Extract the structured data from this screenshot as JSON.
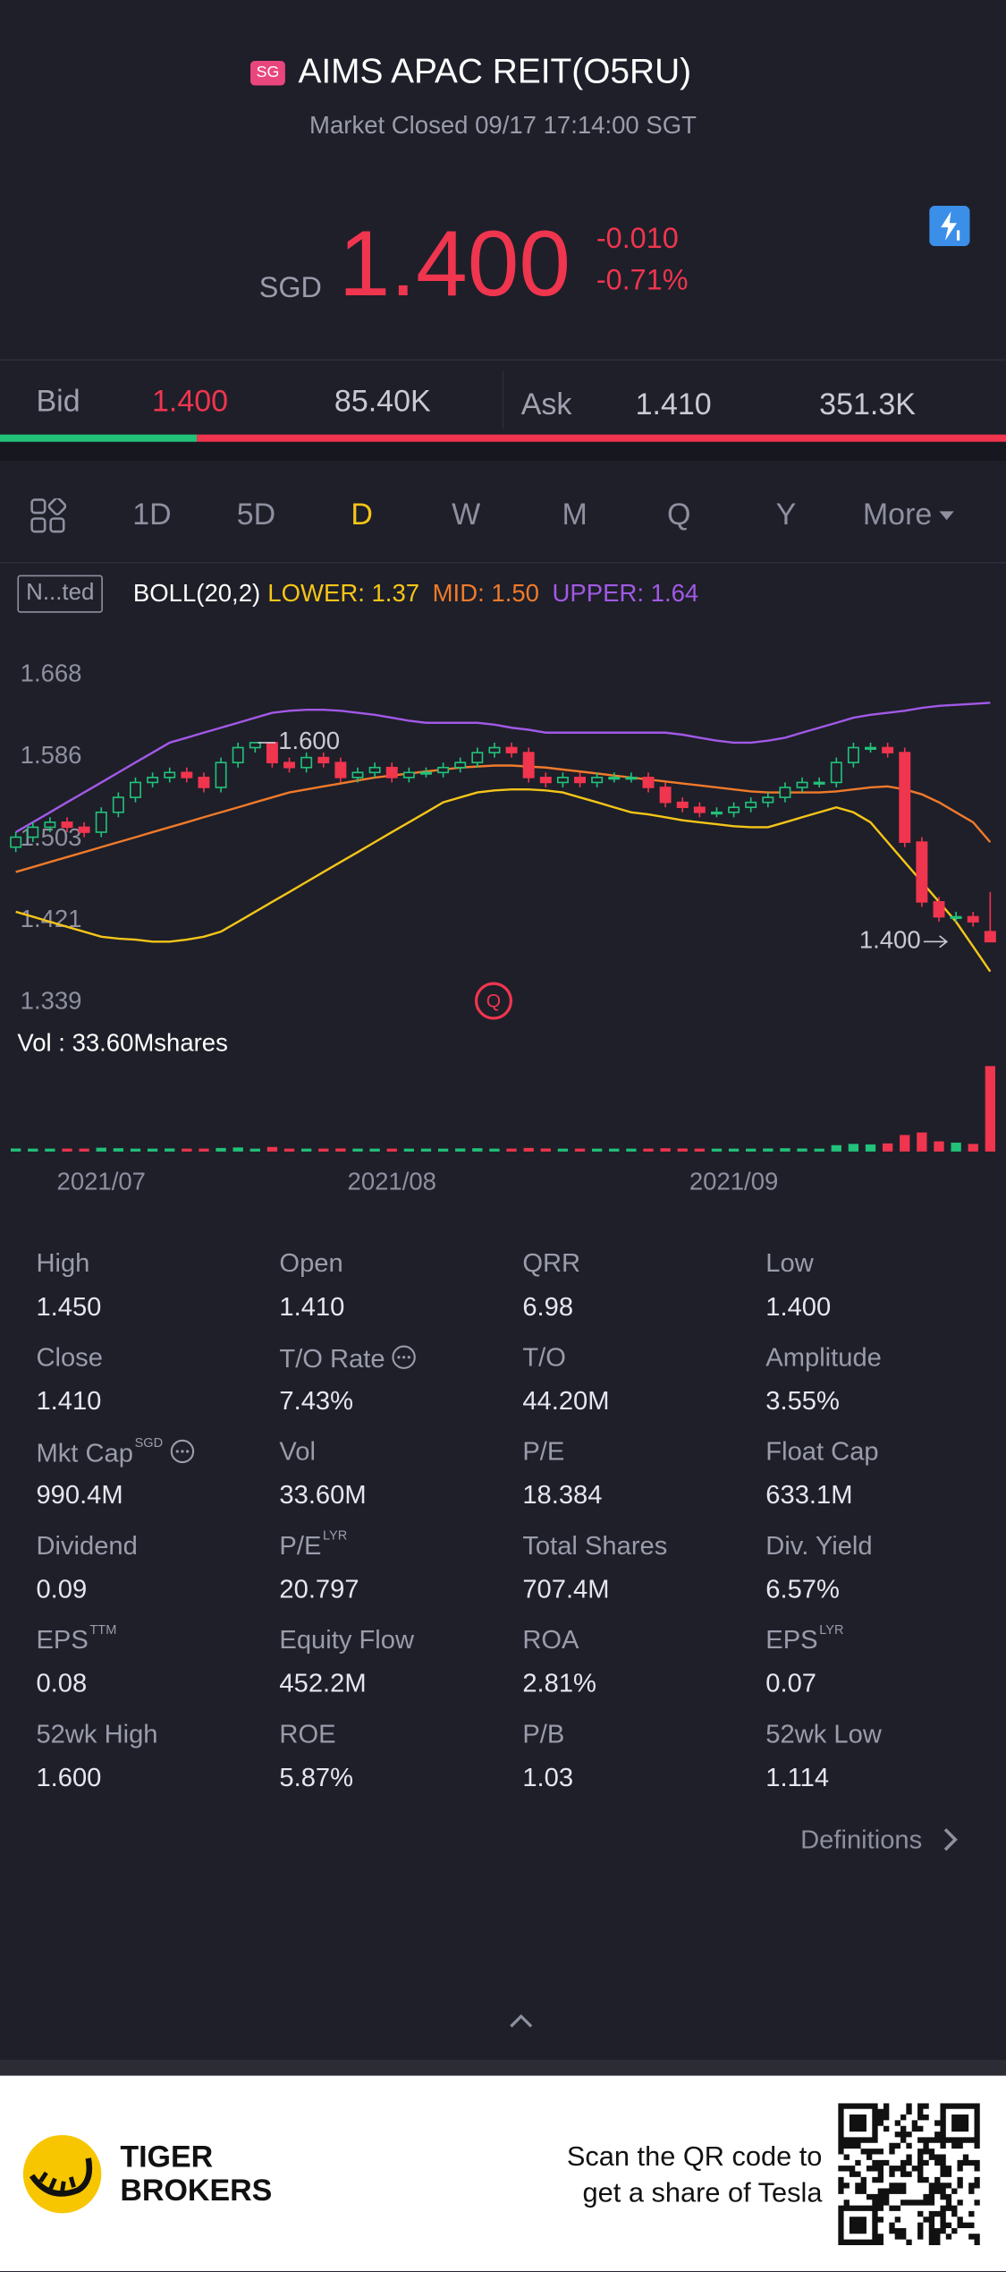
{
  "header": {
    "badge": "SG",
    "title": "AIMS APAC REIT(O5RU)",
    "status": "Market Closed 09/17 17:14:00 SGT"
  },
  "quote": {
    "currency": "SGD",
    "price": "1.400",
    "change": "-0.010",
    "change_pct": "-0.71%"
  },
  "bid_ask": {
    "bid_label": "Bid",
    "bid": "1.400",
    "bid_size": {
      "value": 85400,
      "label": "85.40K"
    },
    "ask_label": "Ask",
    "ask": "1.410",
    "ask_size": {
      "value": 351300,
      "label": "351.3K"
    },
    "bid_color": "#22c27a",
    "ask_color": "#f0354e"
  },
  "tabs": [
    "1D",
    "5D",
    "D",
    "W",
    "M",
    "Q",
    "Y",
    "More"
  ],
  "active_tab": 2,
  "indicator": {
    "tag": "N...ted",
    "label": "BOLL(20,2)"
  },
  "chart_data": {
    "type": "candlestick",
    "categories": [
      null,
      null,
      null,
      null,
      null,
      "2021/07",
      null,
      null,
      null,
      null,
      null,
      null,
      null,
      null,
      null,
      null,
      null,
      null,
      null,
      null,
      null,
      null,
      "2021/08",
      null,
      null,
      null,
      null,
      null,
      null,
      null,
      null,
      null,
      null,
      null,
      null,
      null,
      null,
      null,
      null,
      null,
      null,
      null,
      "2021/09",
      null,
      null,
      null,
      null,
      null,
      null,
      null,
      null,
      null,
      null,
      null,
      null,
      null,
      null,
      null
    ],
    "open": [
      1.495,
      1.505,
      1.515,
      1.52,
      1.515,
      1.51,
      1.53,
      1.545,
      1.56,
      1.565,
      1.57,
      1.565,
      1.555,
      1.58,
      1.595,
      1.6,
      1.58,
      1.575,
      1.585,
      1.58,
      1.565,
      1.57,
      1.575,
      1.565,
      1.57,
      1.57,
      1.575,
      1.58,
      1.59,
      1.595,
      1.59,
      1.565,
      1.56,
      1.565,
      1.56,
      1.565,
      1.565,
      1.565,
      1.555,
      1.54,
      1.535,
      1.53,
      1.53,
      1.535,
      1.54,
      1.545,
      1.555,
      1.56,
      1.56,
      1.58,
      1.595,
      1.595,
      1.59,
      1.5,
      1.44,
      1.425,
      1.425,
      1.41
    ],
    "close": [
      1.505,
      1.515,
      1.52,
      1.515,
      1.51,
      1.53,
      1.545,
      1.56,
      1.565,
      1.57,
      1.565,
      1.555,
      1.58,
      1.595,
      1.6,
      1.58,
      1.575,
      1.585,
      1.58,
      1.565,
      1.57,
      1.575,
      1.565,
      1.57,
      1.57,
      1.575,
      1.58,
      1.59,
      1.595,
      1.59,
      1.565,
      1.56,
      1.565,
      1.56,
      1.565,
      1.565,
      1.565,
      1.555,
      1.54,
      1.535,
      1.53,
      1.53,
      1.535,
      1.54,
      1.545,
      1.555,
      1.56,
      1.56,
      1.58,
      1.595,
      1.595,
      1.59,
      1.5,
      1.44,
      1.425,
      1.425,
      1.42,
      1.4
    ],
    "high": [
      1.51,
      1.52,
      1.525,
      1.525,
      1.52,
      1.535,
      1.55,
      1.565,
      1.57,
      1.575,
      1.575,
      1.57,
      1.585,
      1.6,
      1.6,
      1.6,
      1.585,
      1.59,
      1.59,
      1.585,
      1.575,
      1.58,
      1.58,
      1.575,
      1.575,
      1.58,
      1.585,
      1.595,
      1.6,
      1.6,
      1.595,
      1.57,
      1.57,
      1.57,
      1.57,
      1.57,
      1.57,
      1.57,
      1.56,
      1.545,
      1.54,
      1.535,
      1.54,
      1.545,
      1.55,
      1.56,
      1.565,
      1.565,
      1.585,
      1.6,
      1.6,
      1.6,
      1.595,
      1.505,
      1.445,
      1.43,
      1.43,
      1.45
    ],
    "low": [
      1.49,
      1.5,
      1.51,
      1.51,
      1.505,
      1.505,
      1.525,
      1.54,
      1.555,
      1.56,
      1.56,
      1.55,
      1.55,
      1.575,
      1.59,
      1.575,
      1.57,
      1.57,
      1.575,
      1.56,
      1.56,
      1.565,
      1.56,
      1.56,
      1.565,
      1.565,
      1.57,
      1.575,
      1.585,
      1.585,
      1.56,
      1.555,
      1.555,
      1.555,
      1.555,
      1.56,
      1.56,
      1.55,
      1.535,
      1.53,
      1.525,
      1.525,
      1.525,
      1.53,
      1.535,
      1.54,
      1.55,
      1.555,
      1.555,
      1.575,
      1.59,
      1.585,
      1.495,
      1.435,
      1.42,
      1.42,
      1.415,
      1.4
    ],
    "up_color": "#22c27a",
    "down_color": "#f0354e",
    "series": [
      {
        "name": "LOWER:",
        "legend_value": "1.37",
        "color": "#f5c518",
        "values": [
          1.43,
          1.425,
          1.42,
          1.415,
          1.41,
          1.405,
          1.403,
          1.402,
          1.4,
          1.4,
          1.402,
          1.405,
          1.41,
          1.42,
          1.43,
          1.44,
          1.45,
          1.46,
          1.47,
          1.48,
          1.49,
          1.5,
          1.51,
          1.52,
          1.53,
          1.54,
          1.545,
          1.55,
          1.552,
          1.553,
          1.553,
          1.552,
          1.55,
          1.545,
          1.54,
          1.535,
          1.53,
          1.528,
          1.525,
          1.522,
          1.52,
          1.518,
          1.516,
          1.515,
          1.515,
          1.52,
          1.525,
          1.53,
          1.535,
          1.53,
          1.52,
          1.5,
          1.48,
          1.46,
          1.44,
          1.42,
          1.395,
          1.37
        ]
      },
      {
        "name": "MID:",
        "legend_value": "1.50",
        "color": "#f07a2a",
        "values": [
          1.47,
          1.475,
          1.48,
          1.485,
          1.49,
          1.495,
          1.5,
          1.505,
          1.51,
          1.515,
          1.52,
          1.525,
          1.53,
          1.535,
          1.54,
          1.545,
          1.55,
          1.553,
          1.556,
          1.559,
          1.562,
          1.565,
          1.567,
          1.569,
          1.571,
          1.573,
          1.575,
          1.576,
          1.577,
          1.577,
          1.576,
          1.575,
          1.573,
          1.571,
          1.569,
          1.567,
          1.565,
          1.563,
          1.561,
          1.559,
          1.557,
          1.555,
          1.553,
          1.551,
          1.55,
          1.55,
          1.55,
          1.55,
          1.551,
          1.553,
          1.555,
          1.556,
          1.553,
          1.548,
          1.54,
          1.53,
          1.52,
          1.5
        ]
      },
      {
        "name": "UPPER:",
        "legend_value": "1.64",
        "color": "#a259e6",
        "values": [
          1.51,
          1.52,
          1.53,
          1.54,
          1.55,
          1.56,
          1.57,
          1.58,
          1.59,
          1.6,
          1.605,
          1.61,
          1.615,
          1.62,
          1.625,
          1.63,
          1.632,
          1.633,
          1.633,
          1.632,
          1.63,
          1.628,
          1.625,
          1.622,
          1.62,
          1.62,
          1.62,
          1.62,
          1.618,
          1.615,
          1.613,
          1.61,
          1.61,
          1.61,
          1.61,
          1.61,
          1.61,
          1.61,
          1.61,
          1.608,
          1.605,
          1.602,
          1.6,
          1.6,
          1.602,
          1.605,
          1.61,
          1.615,
          1.62,
          1.625,
          1.628,
          1.63,
          1.632,
          1.635,
          1.637,
          1.638,
          1.639,
          1.64
        ]
      }
    ],
    "ylim": [
      1.339,
      1.668
    ],
    "yticks": [
      1.668,
      1.586,
      1.503,
      1.421,
      1.339
    ],
    "annotations": [
      "1.600",
      "1.400"
    ],
    "volume": {
      "label": "Vol  : 33.60Mshares",
      "values": [
        1.2,
        0.9,
        1.0,
        1.1,
        0.8,
        1.5,
        1.3,
        1.0,
        0.9,
        1.2,
        1.0,
        0.9,
        1.4,
        1.6,
        1.1,
        1.8,
        1.0,
        0.9,
        1.1,
        1.2,
        0.9,
        1.0,
        1.1,
        0.8,
        0.9,
        1.0,
        1.2,
        1.3,
        1.1,
        1.0,
        1.4,
        1.2,
        1.0,
        0.9,
        1.0,
        0.8,
        0.9,
        1.0,
        1.3,
        1.2,
        1.1,
        1.0,
        0.9,
        1.1,
        1.2,
        1.3,
        1.2,
        1.0,
        2.5,
        3.0,
        2.8,
        3.2,
        6.5,
        7.5,
        4.0,
        3.5,
        3.0,
        33.6
      ]
    }
  },
  "stats": [
    {
      "label": "High",
      "value": "1.450"
    },
    {
      "label": "Open",
      "value": "1.410"
    },
    {
      "label": "QRR",
      "value": "6.98"
    },
    {
      "label": "Low",
      "value": "1.400"
    },
    {
      "label": "Close",
      "value": "1.410"
    },
    {
      "label": "T/O Rate",
      "info": true,
      "value": "7.43%"
    },
    {
      "label": "T/O",
      "value": "44.20M"
    },
    {
      "label": "Amplitude",
      "value": "3.55%"
    },
    {
      "label": "Mkt Cap",
      "sup": "SGD",
      "info": true,
      "value": "990.4M"
    },
    {
      "label": "Vol",
      "value": "33.60M"
    },
    {
      "label": "P/E",
      "value": "18.384"
    },
    {
      "label": "Float Cap",
      "value": "633.1M"
    },
    {
      "label": "Dividend",
      "value": "0.09"
    },
    {
      "label": "P/E",
      "sup": "LYR",
      "value": "20.797"
    },
    {
      "label": "Total Shares",
      "value": "707.4M"
    },
    {
      "label": "Div. Yield",
      "value": "6.57%"
    },
    {
      "label": "EPS",
      "sup": "TTM",
      "value": "0.08"
    },
    {
      "label": "Equity Flow",
      "value": "452.2M"
    },
    {
      "label": "ROA",
      "value": "2.81%"
    },
    {
      "label": "EPS",
      "sup": "LYR",
      "value": "0.07"
    },
    {
      "label": "52wk High",
      "value": "1.600"
    },
    {
      "label": "ROE",
      "value": "5.87%"
    },
    {
      "label": "P/B",
      "value": "1.03"
    },
    {
      "label": "52wk Low",
      "value": "1.114"
    }
  ],
  "definitions": "Definitions",
  "footer": {
    "brand_line1": "TIGER",
    "brand_line2": "BROKERS",
    "promo_line1": "Scan the QR code to",
    "promo_line2": "get a share of Tesla"
  }
}
